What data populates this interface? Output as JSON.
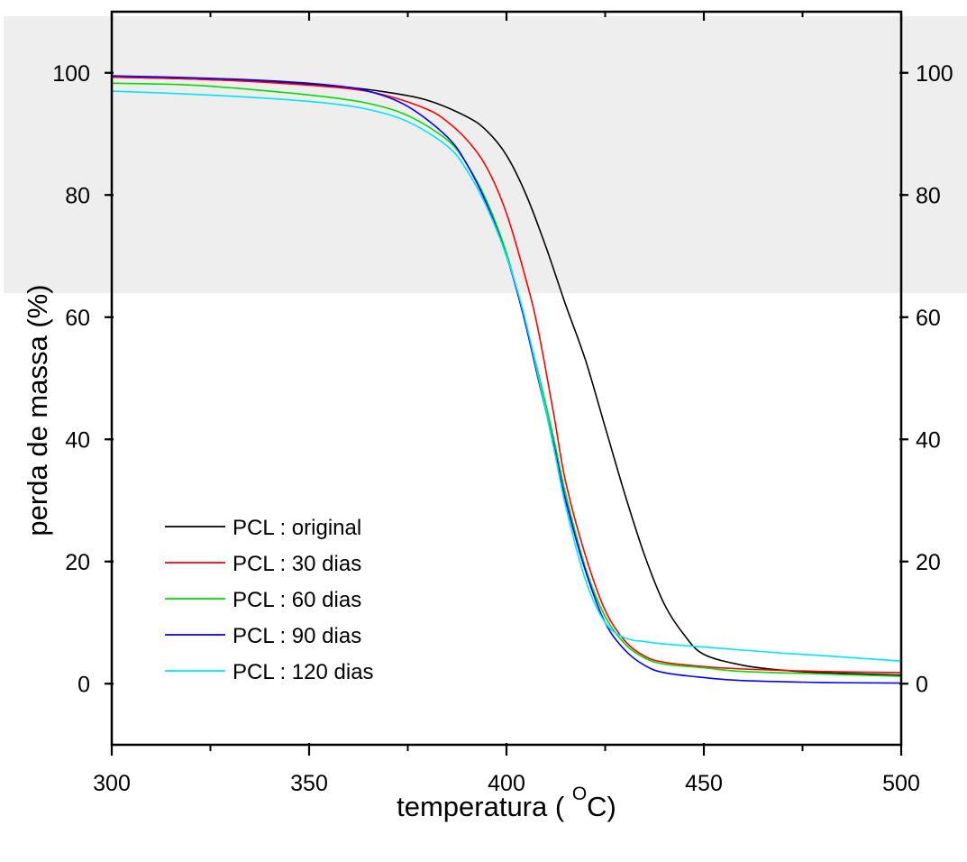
{
  "chart_data": {
    "type": "line",
    "xlabel": "temperatura ( ",
    "xlabel_sup": "O",
    "xlabel_unit": "C)",
    "ylabel": "perda de massa (%)",
    "xlim": [
      300,
      500
    ],
    "ylim": [
      -10,
      110
    ],
    "x_ticks": [
      "300",
      "350",
      "400",
      "450",
      "500"
    ],
    "y_ticks": [
      "0",
      "20",
      "40",
      "60",
      "80",
      "100"
    ],
    "y_ticks_right": [
      "0",
      "20",
      "40",
      "60",
      "80",
      "100"
    ],
    "grid": false,
    "legend_position": "lower-left",
    "series": [
      {
        "name": "PCL : original",
        "color": "#000000",
        "points": [
          [
            300,
            99.3
          ],
          [
            320,
            99.0
          ],
          [
            340,
            98.5
          ],
          [
            360,
            97.6
          ],
          [
            370,
            96.8
          ],
          [
            380,
            95.5
          ],
          [
            390,
            92.8
          ],
          [
            395,
            90.5
          ],
          [
            400,
            86.5
          ],
          [
            405,
            80.0
          ],
          [
            410,
            71.5
          ],
          [
            415,
            62.0
          ],
          [
            420,
            53.0
          ],
          [
            425,
            42.0
          ],
          [
            430,
            31.0
          ],
          [
            435,
            21.0
          ],
          [
            440,
            13.0
          ],
          [
            445,
            8.0
          ],
          [
            450,
            4.8
          ],
          [
            460,
            3.0
          ],
          [
            470,
            2.2
          ],
          [
            480,
            1.8
          ],
          [
            500,
            1.4
          ]
        ]
      },
      {
        "name": "PCL : 30 dias",
        "color": "#ff0000",
        "points": [
          [
            300,
            99.3
          ],
          [
            320,
            99.0
          ],
          [
            340,
            98.4
          ],
          [
            360,
            97.4
          ],
          [
            370,
            96.2
          ],
          [
            380,
            94.0
          ],
          [
            385,
            92.0
          ],
          [
            390,
            89.0
          ],
          [
            395,
            84.5
          ],
          [
            400,
            77.0
          ],
          [
            405,
            66.0
          ],
          [
            408,
            58.0
          ],
          [
            412,
            44.0
          ],
          [
            415,
            33.0
          ],
          [
            420,
            21.0
          ],
          [
            425,
            12.0
          ],
          [
            430,
            7.0
          ],
          [
            435,
            4.5
          ],
          [
            440,
            3.5
          ],
          [
            450,
            2.8
          ],
          [
            460,
            2.4
          ],
          [
            480,
            2.0
          ],
          [
            500,
            1.8
          ]
        ]
      },
      {
        "name": "PCL : 60 dias",
        "color": "#00dd00",
        "points": [
          [
            300,
            98.3
          ],
          [
            320,
            98.0
          ],
          [
            340,
            97.0
          ],
          [
            355,
            96.0
          ],
          [
            365,
            95.0
          ],
          [
            375,
            93.0
          ],
          [
            385,
            89.0
          ],
          [
            390,
            85.0
          ],
          [
            395,
            79.0
          ],
          [
            400,
            70.5
          ],
          [
            404,
            61.0
          ],
          [
            408,
            51.0
          ],
          [
            412,
            40.0
          ],
          [
            415,
            31.0
          ],
          [
            420,
            19.0
          ],
          [
            425,
            11.0
          ],
          [
            430,
            6.5
          ],
          [
            435,
            4.2
          ],
          [
            440,
            3.2
          ],
          [
            450,
            2.6
          ],
          [
            460,
            2.0
          ],
          [
            480,
            1.6
          ],
          [
            500,
            1.2
          ]
        ]
      },
      {
        "name": "PCL : 90 dias",
        "color": "#0000ff",
        "points": [
          [
            300,
            99.5
          ],
          [
            320,
            99.2
          ],
          [
            340,
            98.7
          ],
          [
            355,
            98.0
          ],
          [
            365,
            97.0
          ],
          [
            375,
            94.5
          ],
          [
            385,
            89.5
          ],
          [
            390,
            85.0
          ],
          [
            395,
            78.5
          ],
          [
            400,
            70.0
          ],
          [
            404,
            61.0
          ],
          [
            408,
            50.0
          ],
          [
            412,
            39.0
          ],
          [
            415,
            30.0
          ],
          [
            420,
            18.5
          ],
          [
            425,
            10.0
          ],
          [
            430,
            5.5
          ],
          [
            435,
            3.0
          ],
          [
            440,
            1.8
          ],
          [
            450,
            1.0
          ],
          [
            460,
            0.5
          ],
          [
            480,
            0.2
          ],
          [
            500,
            0.1
          ]
        ]
      },
      {
        "name": "PCL : 120 dias",
        "color": "#00e5ff",
        "points": [
          [
            300,
            97.0
          ],
          [
            320,
            96.5
          ],
          [
            340,
            95.8
          ],
          [
            355,
            95.0
          ],
          [
            365,
            94.0
          ],
          [
            375,
            92.0
          ],
          [
            385,
            88.0
          ],
          [
            390,
            84.0
          ],
          [
            395,
            78.0
          ],
          [
            400,
            70.0
          ],
          [
            404,
            61.5
          ],
          [
            408,
            50.5
          ],
          [
            412,
            38.5
          ],
          [
            415,
            29.0
          ],
          [
            420,
            17.0
          ],
          [
            425,
            10.0
          ],
          [
            430,
            7.5
          ],
          [
            435,
            6.9
          ],
          [
            440,
            6.5
          ],
          [
            450,
            6.0
          ],
          [
            460,
            5.5
          ],
          [
            470,
            5.0
          ],
          [
            480,
            4.6
          ],
          [
            500,
            3.7
          ]
        ]
      }
    ]
  }
}
